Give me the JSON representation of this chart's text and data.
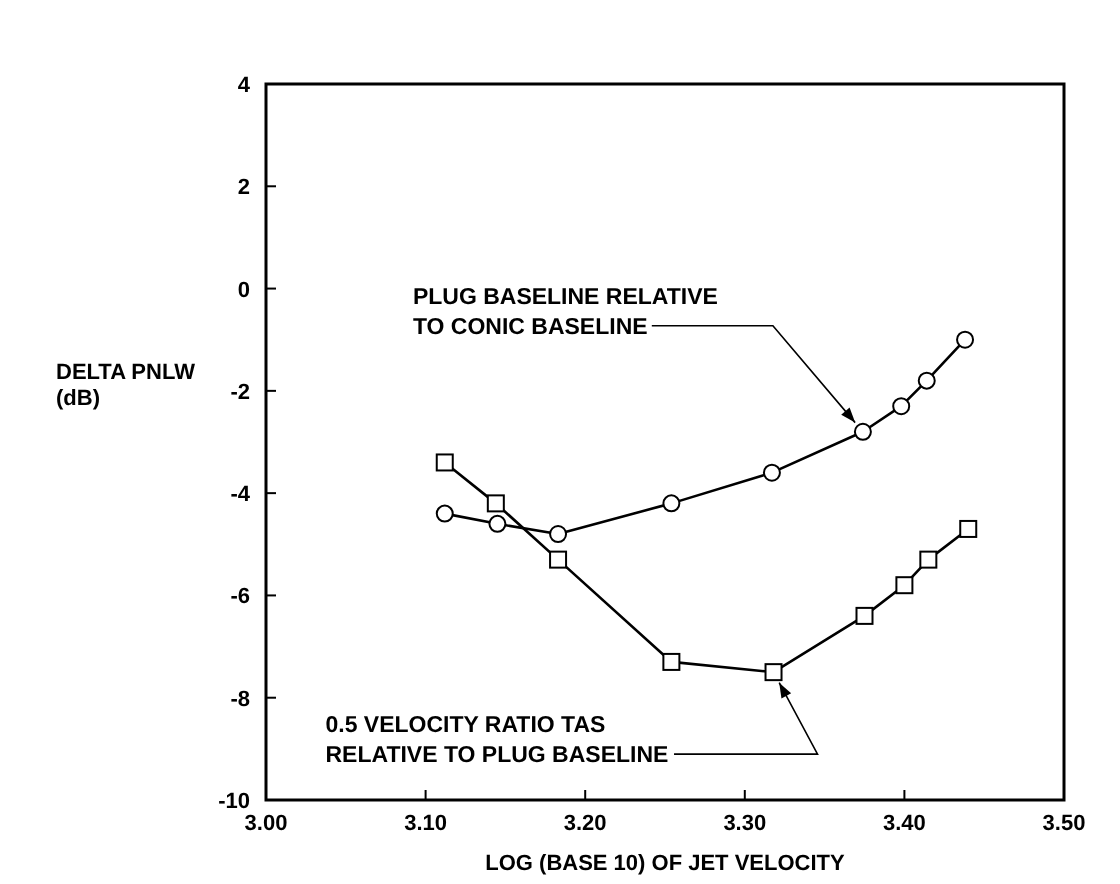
{
  "chart_data": {
    "type": "line",
    "xlabel": "LOG (BASE 10) OF JET VELOCITY",
    "ylabel": "DELTA PNLW (dB)",
    "xlim": [
      3.0,
      3.5
    ],
    "ylim": [
      -10,
      4
    ],
    "xticks": [
      {
        "value": 3.0,
        "label": "3.00"
      },
      {
        "value": 3.1,
        "label": "3.10"
      },
      {
        "value": 3.2,
        "label": "3.20"
      },
      {
        "value": 3.3,
        "label": "3.30"
      },
      {
        "value": 3.4,
        "label": "3.40"
      },
      {
        "value": 3.5,
        "label": "3.50"
      }
    ],
    "yticks": [
      -10,
      -8,
      -6,
      -4,
      -2,
      0,
      2,
      4
    ],
    "grid": false,
    "series": [
      {
        "color": "#000000",
        "marker": "circle",
        "x": [
          3.112,
          3.145,
          3.183,
          3.254,
          3.317,
          3.374,
          3.398,
          3.414,
          3.438
        ],
        "values": [
          -4.4,
          -4.6,
          -4.8,
          -4.2,
          -3.6,
          -2.8,
          -2.3,
          -1.8,
          -1.0
        ]
      },
      {
        "color": "#000000",
        "marker": "square",
        "x": [
          3.112,
          3.144,
          3.183,
          3.254,
          3.318,
          3.375,
          3.4,
          3.415,
          3.44
        ],
        "values": [
          -3.4,
          -4.2,
          -5.3,
          -7.3,
          -7.5,
          -6.4,
          -5.8,
          -5.3,
          -4.7
        ]
      }
    ],
    "annotations": [
      {
        "text": "PLUG BASELINE RELATIVE\nTO CONIC BASELINE",
        "x": 3.374,
        "y": -2.8
      },
      {
        "text": "0.5 VELOCITY RATIO TAS\nRELATIVE TO PLUG BASELINE",
        "x": 3.318,
        "y": -7.5
      }
    ]
  }
}
